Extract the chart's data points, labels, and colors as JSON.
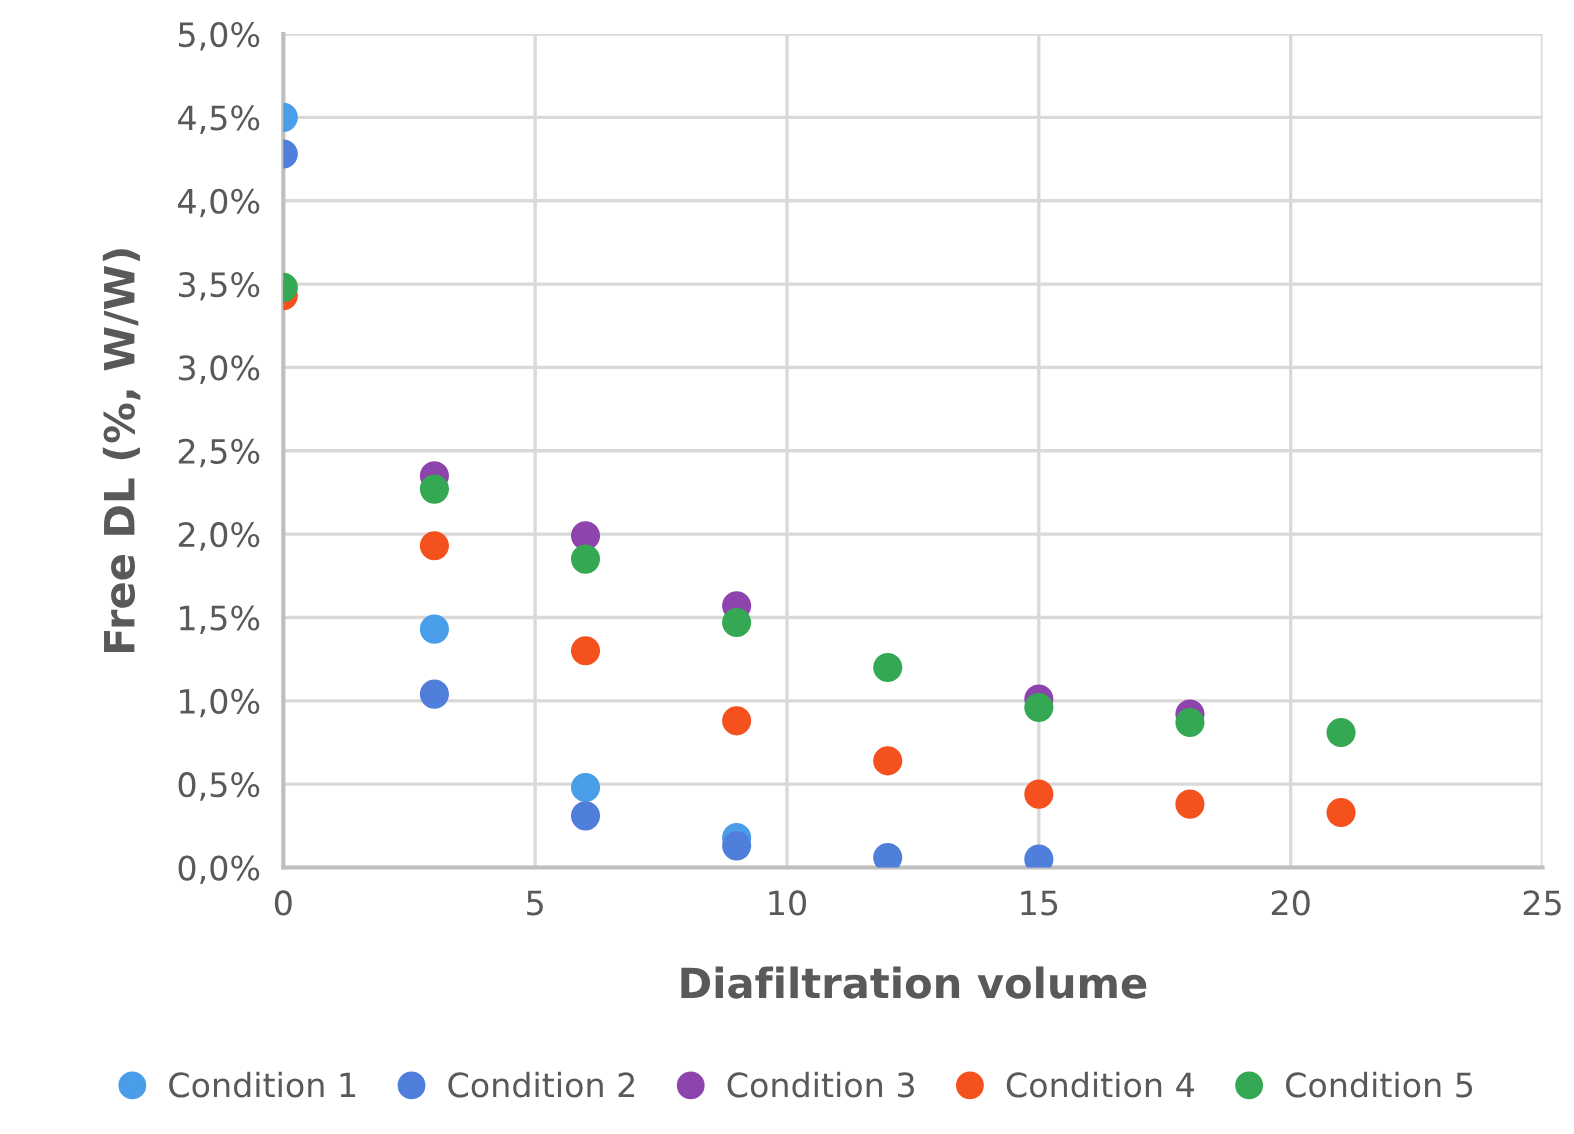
{
  "chart_data": {
    "type": "scatter",
    "xlabel": "Diafiltration volume",
    "ylabel": "Free DL (%, W/W)",
    "x": [
      0,
      3,
      6,
      9,
      12,
      15,
      18,
      21
    ],
    "series": [
      {
        "name": "Condition 1",
        "color": "#4a9de8",
        "values": [
          4.5,
          1.43,
          0.48,
          0.18,
          null,
          null,
          null,
          null
        ]
      },
      {
        "name": "Condition 2",
        "color": "#4f7fdb",
        "values": [
          4.28,
          1.04,
          0.31,
          0.13,
          0.06,
          0.05,
          null,
          null
        ]
      },
      {
        "name": "Condition 3",
        "color": "#8e44ad",
        "values": [
          null,
          2.35,
          1.99,
          1.57,
          null,
          1.01,
          0.92,
          null
        ]
      },
      {
        "name": "Condition 4",
        "color": "#f4511e",
        "values": [
          3.43,
          1.93,
          1.3,
          0.88,
          0.64,
          0.44,
          0.38,
          0.33
        ]
      },
      {
        "name": "Condition 5",
        "color": "#34a853",
        "values": [
          3.48,
          2.27,
          1.85,
          1.47,
          1.2,
          0.96,
          0.87,
          0.81
        ]
      }
    ],
    "xlim": [
      0,
      25
    ],
    "xticks": [
      0,
      5,
      10,
      15,
      20,
      25
    ],
    "ylim": [
      0,
      5
    ],
    "yticks": [
      {
        "value": 0,
        "label": "0,0%"
      },
      {
        "value": 0.5,
        "label": "0,5%"
      },
      {
        "value": 1,
        "label": "1,0%"
      },
      {
        "value": 1.5,
        "label": "1,5%"
      },
      {
        "value": 2,
        "label": "2,0%"
      },
      {
        "value": 2.5,
        "label": "2,5%"
      },
      {
        "value": 3,
        "label": "3,0%"
      },
      {
        "value": 3.5,
        "label": "3,5%"
      },
      {
        "value": 4,
        "label": "4,0%"
      },
      {
        "value": 4.5,
        "label": "4,5%"
      },
      {
        "value": 5,
        "label": "5,0%"
      }
    ],
    "grid": true,
    "legend": "bottom",
    "marker": "circle"
  }
}
